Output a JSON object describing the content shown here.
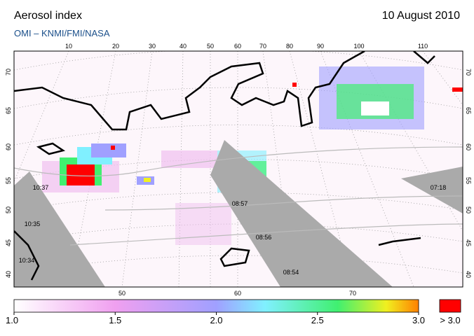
{
  "header": {
    "title": "Aerosol index",
    "date": "10 August 2010",
    "source": "OMI  –  KNMI/FMI/NASA"
  },
  "map": {
    "top_longitudes": [
      "10",
      "20",
      "30",
      "40",
      "50",
      "60",
      "70",
      "80",
      "90",
      "100",
      "110"
    ],
    "bottom_longitudes": [
      "50",
      "60",
      "70"
    ],
    "left_latitudes": [
      "70",
      "65",
      "60",
      "55",
      "50",
      "45",
      "40"
    ],
    "right_latitudes": [
      "70",
      "65",
      "60",
      "55",
      "50",
      "45",
      "40"
    ],
    "times": [
      "10:37",
      "10:35",
      "10:34",
      "08:57",
      "08:56",
      "08:54",
      "07:18"
    ]
  },
  "colorbar": {
    "ticks": [
      "1.0",
      "1.5",
      "2.0",
      "2.5",
      "3.0"
    ],
    "over": "> 3.0"
  }
}
